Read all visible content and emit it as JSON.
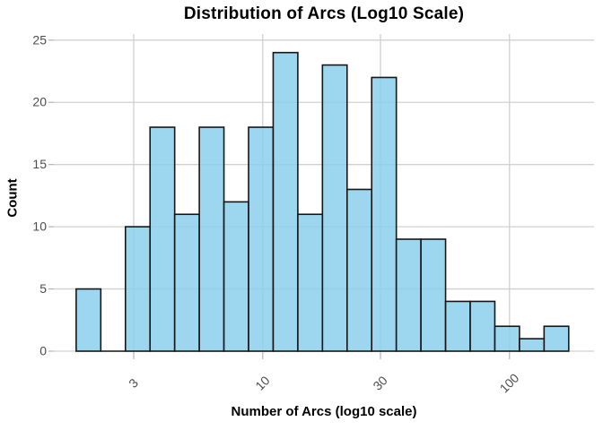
{
  "chart_data": {
    "type": "bar",
    "subtype": "histogram",
    "title": "Distribution of Arcs (Log10 Scale)",
    "xlabel": "Number of Arcs (log10 scale)",
    "ylabel": "Count",
    "x_scale": "log10",
    "x_ticks": [
      3,
      10,
      30,
      100
    ],
    "y_ticks": [
      0,
      5,
      10,
      15,
      20,
      25
    ],
    "ylim": [
      0,
      25
    ],
    "bins_log10_start": 0.244,
    "bin_log10_width": 0.0998,
    "counts": [
      5,
      0,
      10,
      18,
      11,
      18,
      12,
      18,
      24,
      11,
      23,
      13,
      22,
      9,
      9,
      4,
      4,
      2,
      1,
      2
    ],
    "legend": "none",
    "grid": "on",
    "colors": {
      "bar_fill": "#87CEEB",
      "bar_fill_opacity": 0.82,
      "bar_stroke": "#161616",
      "grid_line": "#d0d0d0",
      "axis_tick": "#b3b3b3",
      "tick_label": "#4d4d4d",
      "title_text": "#000000"
    }
  }
}
